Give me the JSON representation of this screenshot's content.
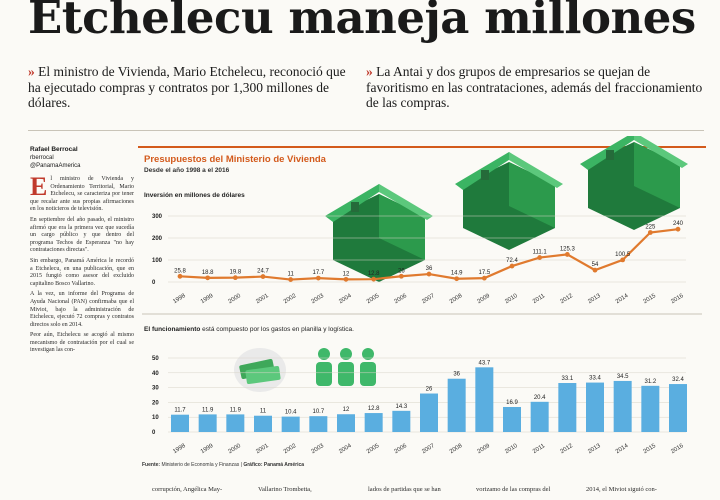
{
  "headline": {
    "text": "Etchelecu maneja millones"
  },
  "deck": {
    "left": "El ministro de Vivienda, Mario Etchelecu, reconoció que ha ejecutado compras y contratos por 1,300 millones de dólares.",
    "right": "La Antai y dos grupos de empresarios se quejan de favoritismo en las contrataciones, además del fraccionamiento de las compras.",
    "mark": "»"
  },
  "byline": {
    "name": "Rafael Berrocal",
    "handle1": "rberrocal",
    "handle2": "@PanamaAmerica"
  },
  "article": {
    "drop": "E",
    "p1": "l ministro de Vivienda y Ordenamiento Territorial, Mario Etchelecu, se caracteriza por tener que recalar ante sus propias afirmaciones en los noticieros de televisión.",
    "p2": "En septiembre del año pasado, el ministro afirmó que era la primera vez que sucedía un cargo público y que dentro del programa Techos de Esperanza \"no hay contrataciones directas\".",
    "p3": "Sin embargo, Panamá América le recordó a Etchelecu, en una publicación, que en 2015 fungió como asesor del excluido capitalino Bosco Vallarino.",
    "p4": "A la vez, un informe del Programa de Ayuda Nacional (PAN) confirmaba que el Miviot, bajo la administración de Etchelecu, ejecutó 72 compras y contratos directos solo en 2014.",
    "p5": "Peor aún, Etchelecu se acogió al mismo mecanismo de contratación por el cual se investigan las con-"
  },
  "bottom_text": {
    "c1": "corrupción, Angélica May-",
    "c2": "Vallarino Trombetta,",
    "c3": "lados de partidas que se han",
    "c4": "vorizamo de las compras del",
    "c5": "2014, el Miviot siguió con-"
  },
  "infographic": {
    "title": "Presupuestos del Ministerio de Vivienda",
    "subtitle": "Desde el año 1998 a el 2016",
    "source_label": "Fuente:",
    "source_text": "Ministerio de Economía y Finanzas",
    "credit_label": "Gráfico:",
    "credit_text": "Panamá América"
  },
  "chart_data": [
    {
      "type": "line",
      "title": "Inversión en millones de dólares",
      "categories": [
        "1998",
        "1999",
        "2000",
        "2001",
        "2002",
        "2003",
        "2004",
        "2005",
        "2006",
        "2007",
        "2008",
        "2009",
        "2010",
        "2011",
        "2012",
        "2013",
        "2014",
        "2015",
        "2016"
      ],
      "values": [
        25.8,
        18.8,
        19.8,
        24.7,
        11,
        17.7,
        12,
        12.8,
        26,
        36,
        14.9,
        17.5,
        72.4,
        111.1,
        125.3,
        54,
        100.5,
        225,
        240
      ],
      "yticks": [
        "300",
        "200",
        "100",
        "0"
      ],
      "ylim": [
        0,
        300
      ],
      "color": "#e07a2e"
    },
    {
      "type": "bar",
      "title": "El funcionamiento",
      "title_rest": "está compuesto por los gastos en planilla y logística.",
      "categories": [
        "1998",
        "1999",
        "2000",
        "2001",
        "2002",
        "2003",
        "2004",
        "2005",
        "2006",
        "2007",
        "2008",
        "2009",
        "2010",
        "2011",
        "2012",
        "2013",
        "2014",
        "2015",
        "2016"
      ],
      "values": [
        11.7,
        11.9,
        11.9,
        11,
        10.4,
        10.7,
        12,
        12.8,
        14.3,
        26,
        36,
        43.7,
        16.9,
        20.4,
        33.1,
        33.4,
        34.5,
        31.2,
        32.4
      ],
      "yticks": [
        "50",
        "40",
        "30",
        "20",
        "10",
        "0"
      ],
      "ylim": [
        0,
        50
      ],
      "color": "#5aaee0"
    }
  ]
}
